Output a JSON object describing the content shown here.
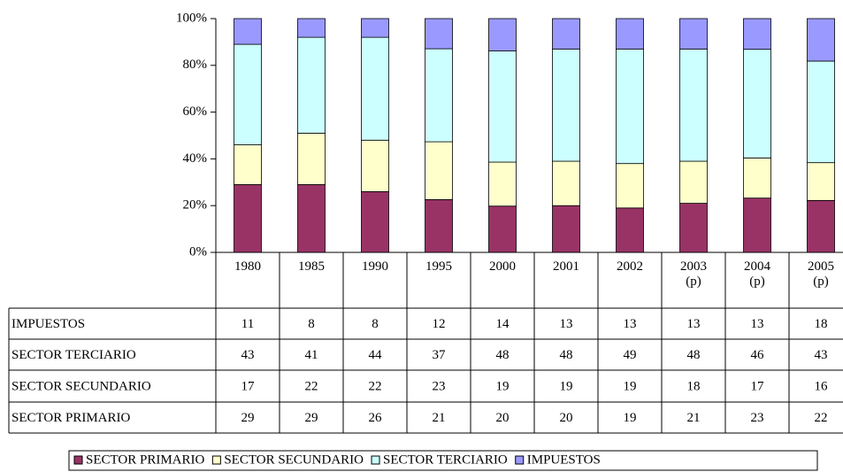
{
  "chart_data": {
    "type": "bar",
    "stacked": "percent",
    "categories": [
      "1980",
      "1985",
      "1990",
      "1995",
      "2000",
      "2001",
      "2002",
      "2003(p)",
      "2004(p)",
      "2005(p)"
    ],
    "series": [
      {
        "name": "SECTOR PRIMARIO",
        "color": "#993366",
        "values": [
          29,
          29,
          26,
          21,
          20,
          20,
          19,
          21,
          23,
          22
        ]
      },
      {
        "name": "SECTOR SECUNDARIO",
        "color": "#FFFFCC",
        "values": [
          17,
          22,
          22,
          23,
          19,
          19,
          19,
          18,
          17,
          16
        ]
      },
      {
        "name": "SECTOR TERCIARIO",
        "color": "#CCFFFF",
        "values": [
          43,
          41,
          44,
          37,
          48,
          48,
          49,
          48,
          46,
          43
        ]
      },
      {
        "name": "IMPUESTOS",
        "color": "#9999FF",
        "values": [
          11,
          8,
          8,
          12,
          14,
          13,
          13,
          13,
          13,
          18
        ]
      }
    ],
    "ylim": [
      0,
      100
    ],
    "yticks": [
      {
        "value": 0,
        "label": "0%"
      },
      {
        "value": 20,
        "label": "20%"
      },
      {
        "value": 40,
        "label": "40%"
      },
      {
        "value": 60,
        "label": "60%"
      },
      {
        "value": 80,
        "label": "80%"
      },
      {
        "value": 100,
        "label": "100%"
      }
    ],
    "data_table": true,
    "legend": "bottom"
  }
}
